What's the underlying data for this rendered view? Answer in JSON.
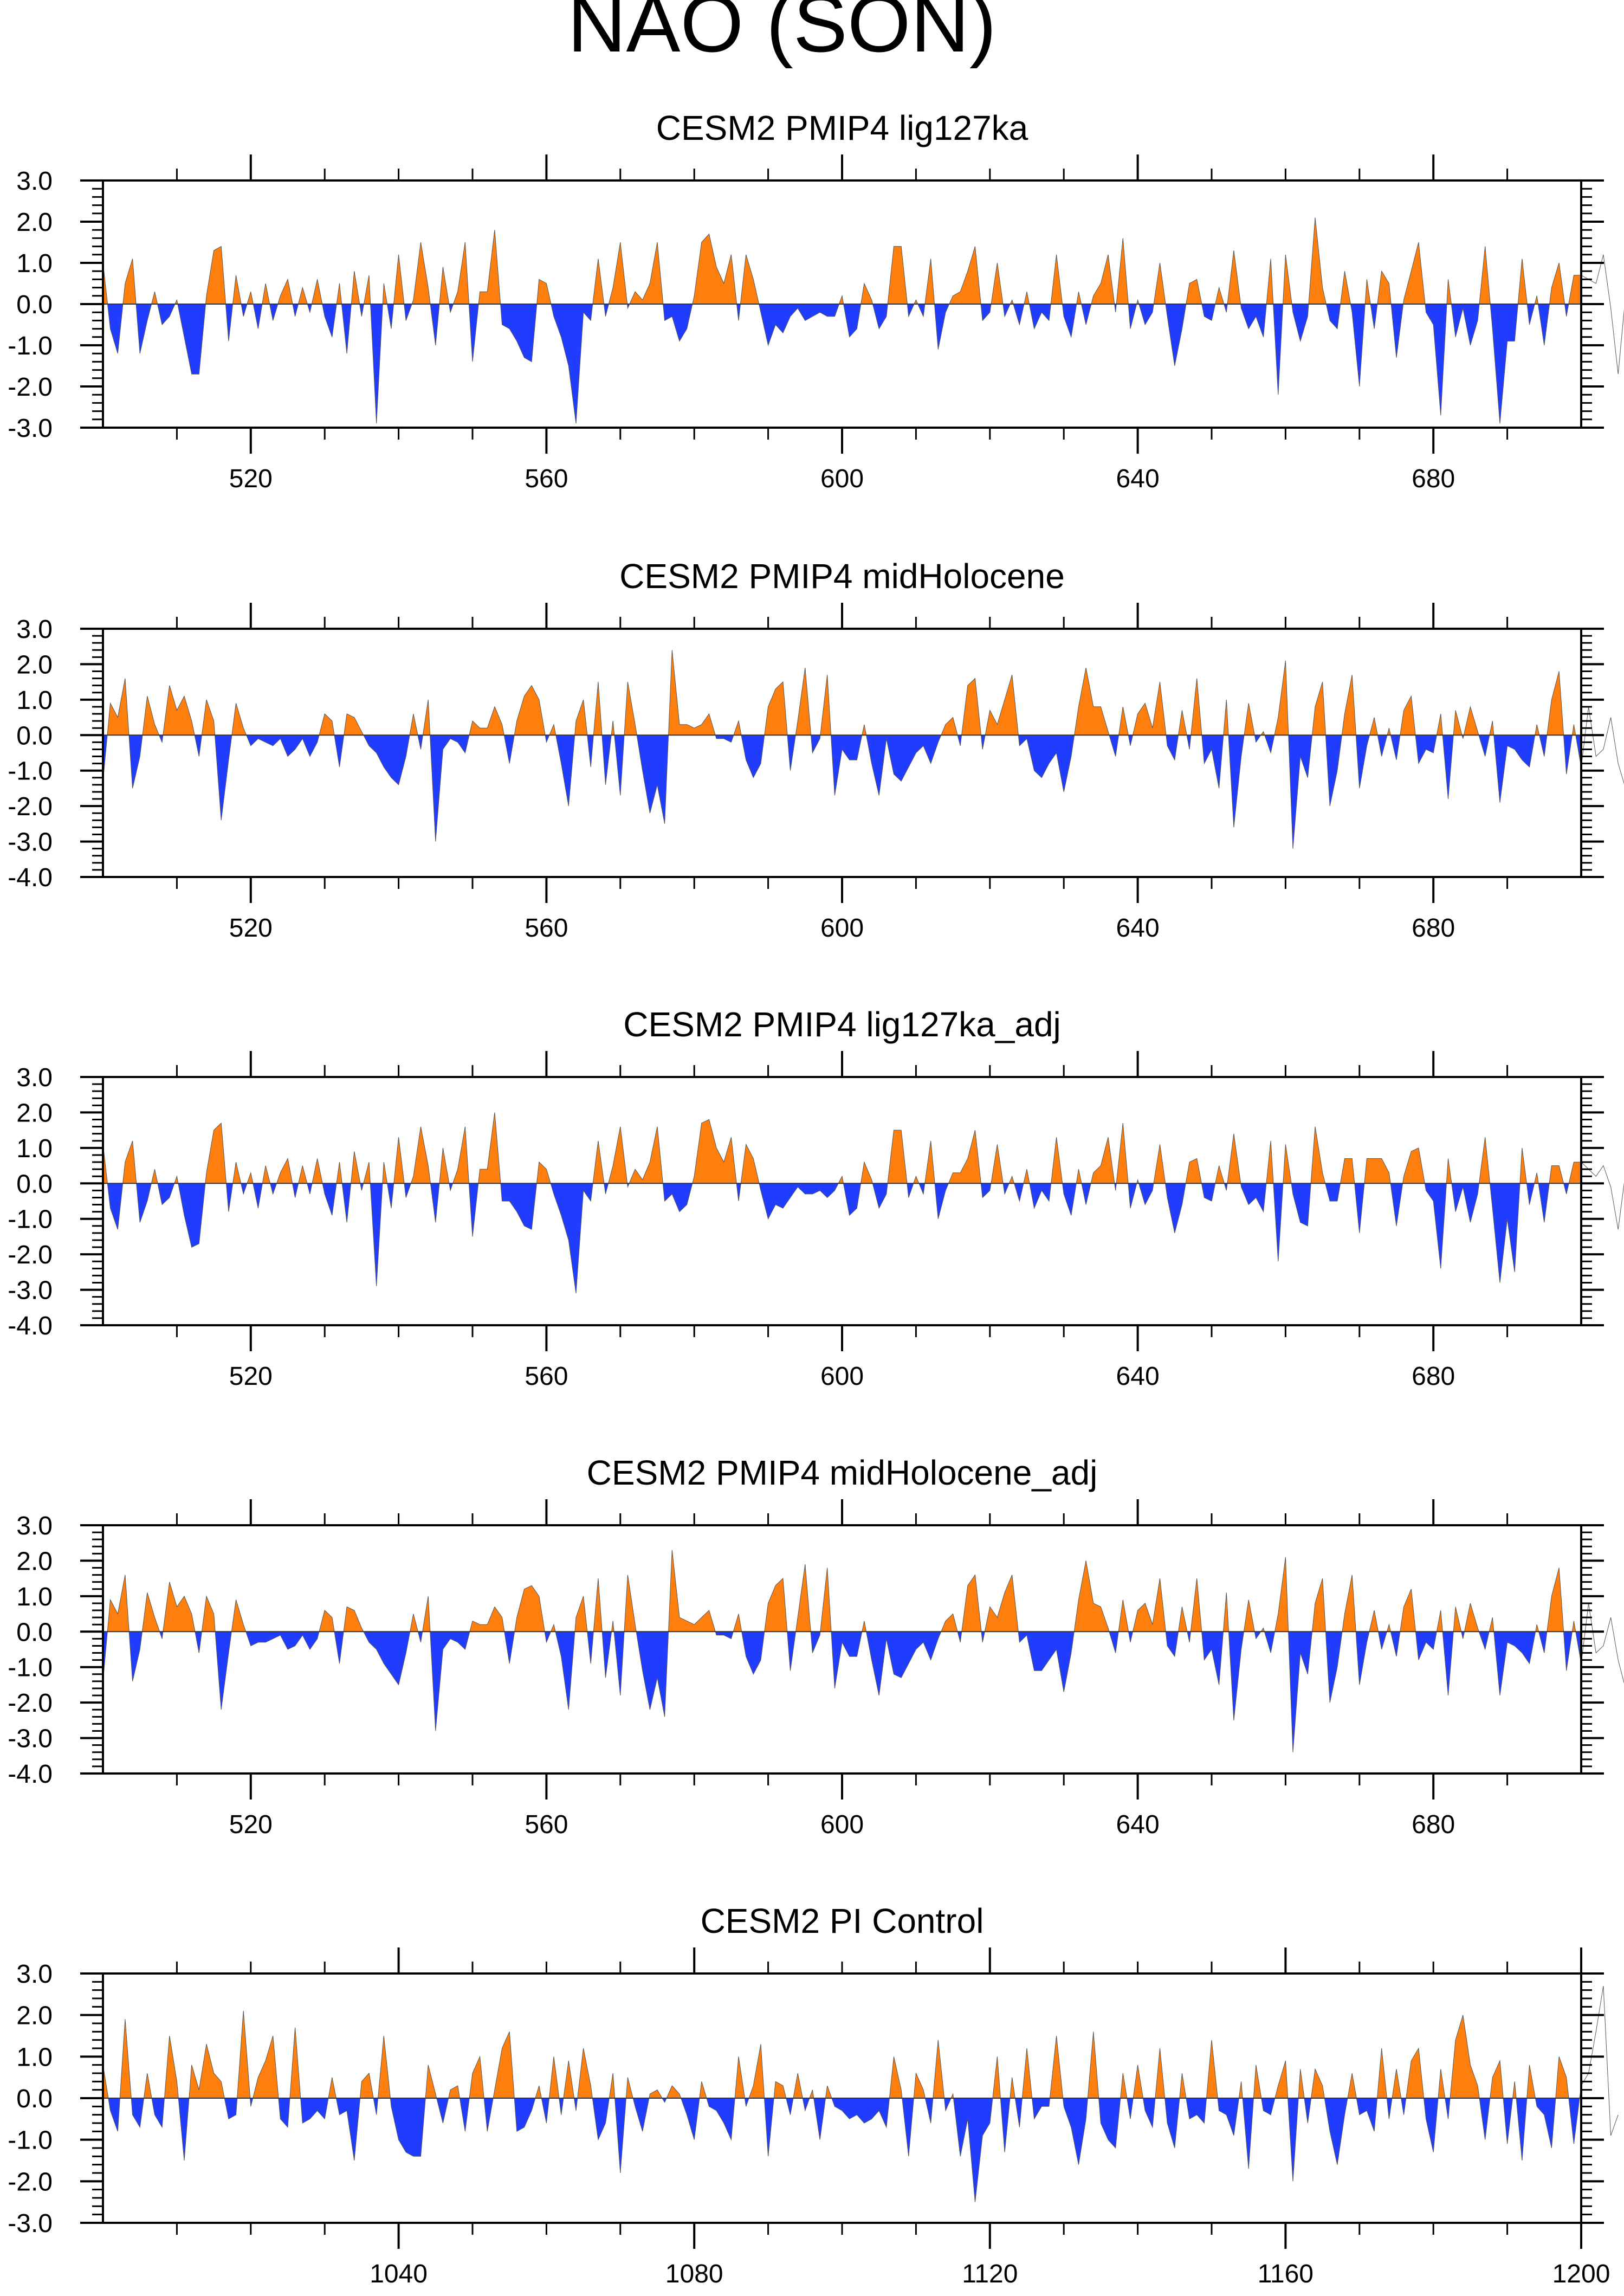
{
  "figure": {
    "title": "NAO (SON)"
  },
  "colors": {
    "positive": "#ff7f0e",
    "negative": "#1f3cff",
    "axis": "#000000"
  },
  "chart_data": [
    {
      "type": "area",
      "title": "CESM2 PMIP4 lig127ka",
      "xlim": [
        500,
        700
      ],
      "ylim": [
        -3.0,
        3.0
      ],
      "yticks": [
        -3.0,
        -2.0,
        -1.0,
        0.0,
        1.0,
        2.0,
        3.0
      ],
      "ytick_labels": [
        "-3.0",
        "-2.0",
        "-1.0",
        "0.0",
        "1.0",
        "2.0",
        "3.0"
      ],
      "xticks": [
        520,
        560,
        600,
        640,
        680
      ],
      "xtick_labels": [
        "520",
        "560",
        "600",
        "640",
        "680"
      ],
      "x_start": 500,
      "values": [
        1.0,
        -0.6,
        -1.2,
        0.5,
        1.1,
        -1.2,
        -0.4,
        0.3,
        -0.5,
        -0.3,
        0.1,
        -0.8,
        -1.7,
        -1.7,
        0.2,
        1.3,
        1.4,
        -0.9,
        0.7,
        -0.3,
        0.3,
        -0.6,
        0.5,
        -0.4,
        0.2,
        0.6,
        -0.3,
        0.4,
        -0.2,
        0.6,
        -0.3,
        -0.8,
        0.5,
        -1.2,
        0.8,
        -0.3,
        0.7,
        -2.9,
        0.5,
        -0.6,
        1.2,
        -0.4,
        0.1,
        1.5,
        0.4,
        -1.0,
        0.9,
        -0.2,
        0.3,
        1.5,
        -1.4,
        0.3,
        0.3,
        1.8,
        -0.5,
        -0.6,
        -0.9,
        -1.3,
        -1.4,
        0.6,
        0.5,
        -0.3,
        -0.8,
        -1.5,
        -2.9,
        -0.2,
        -0.4,
        1.1,
        -0.3,
        0.4,
        1.5,
        -0.1,
        0.3,
        0.1,
        0.5,
        1.5,
        -0.4,
        -0.3,
        -0.9,
        -0.6,
        0.2,
        1.5,
        1.7,
        0.9,
        0.5,
        1.2,
        -0.4,
        1.2,
        0.6,
        -0.2,
        -1.0,
        -0.5,
        -0.7,
        -0.3,
        -0.1,
        -0.4,
        -0.3,
        -0.2,
        -0.3,
        -0.3,
        0.2,
        -0.8,
        -0.6,
        0.5,
        0.1,
        -0.6,
        -0.3,
        1.4,
        1.4,
        -0.3,
        0.1,
        -0.3,
        1.1,
        -1.1,
        -0.2,
        0.2,
        0.3,
        0.8,
        1.4,
        -0.4,
        -0.2,
        1.0,
        -0.3,
        0.1,
        -0.5,
        0.3,
        -0.6,
        -0.2,
        -0.4,
        1.2,
        -0.3,
        -0.8,
        0.3,
        -0.5,
        0.2,
        0.5,
        1.2,
        -0.2,
        1.6,
        -0.6,
        0.1,
        -0.5,
        -0.2,
        1.0,
        -0.3,
        -1.5,
        -0.6,
        0.5,
        0.6,
        -0.3,
        -0.4,
        0.4,
        -0.2,
        1.3,
        -0.1,
        -0.6,
        -0.3,
        -0.8,
        1.1,
        -2.2,
        1.2,
        -0.2,
        -0.9,
        -0.3,
        2.1,
        0.4,
        -0.4,
        -0.6,
        0.8,
        -0.2,
        -2.0,
        0.6,
        -0.6,
        0.8,
        0.5,
        -1.3,
        0.1,
        0.8,
        1.5,
        -0.2,
        -0.5,
        -2.7,
        0.6,
        -0.8,
        -0.1,
        -1.0,
        -0.4,
        1.4,
        -0.6,
        -2.9,
        -0.9,
        -0.9,
        1.1,
        -0.5,
        0.2,
        -1.0,
        0.4,
        1.0,
        -0.3,
        0.7,
        0.7,
        0.6,
        0.5,
        1.2,
        -0.1,
        -1.7,
        0.2,
        -0.4,
        -1.8,
        -2.0,
        -1.8
      ]
    },
    {
      "type": "area",
      "title": "CESM2 PMIP4 midHolocene",
      "xlim": [
        500,
        700
      ],
      "ylim": [
        -4.0,
        3.0
      ],
      "yticks": [
        -4.0,
        -3.0,
        -2.0,
        -1.0,
        0.0,
        1.0,
        2.0,
        3.0
      ],
      "ytick_labels": [
        "-4.0",
        "-3.0",
        "-2.0",
        "-1.0",
        "0.0",
        "1.0",
        "2.0",
        "3.0"
      ],
      "xticks": [
        520,
        560,
        600,
        640,
        680
      ],
      "xtick_labels": [
        "520",
        "560",
        "600",
        "640",
        "680"
      ],
      "x_start": 500,
      "values": [
        -1.3,
        0.9,
        0.5,
        1.6,
        -1.5,
        -0.6,
        1.1,
        0.3,
        -0.2,
        1.4,
        0.7,
        1.1,
        0.4,
        -0.6,
        1.0,
        0.4,
        -2.4,
        -0.7,
        0.9,
        0.2,
        -0.3,
        -0.1,
        -0.2,
        -0.3,
        -0.1,
        -0.6,
        -0.4,
        -0.1,
        -0.6,
        -0.2,
        0.6,
        0.4,
        -0.9,
        0.6,
        0.5,
        0.1,
        -0.3,
        -0.5,
        -0.9,
        -1.2,
        -1.4,
        -0.6,
        0.6,
        -0.4,
        1.0,
        -3.0,
        -0.4,
        -0.1,
        -0.2,
        -0.5,
        0.4,
        0.2,
        0.2,
        0.8,
        0.3,
        -0.8,
        0.4,
        1.1,
        1.4,
        1.0,
        -0.2,
        0.3,
        -0.8,
        -2.0,
        0.4,
        1.0,
        -0.9,
        1.5,
        -1.4,
        0.4,
        -1.7,
        1.5,
        0.3,
        -1.0,
        -2.2,
        -1.4,
        -2.5,
        2.4,
        0.3,
        0.3,
        0.2,
        0.3,
        0.6,
        -0.1,
        -0.1,
        -0.2,
        0.4,
        -0.7,
        -1.2,
        -0.8,
        0.8,
        1.3,
        1.5,
        -1.0,
        0.4,
        1.9,
        -0.5,
        -0.1,
        1.7,
        -1.7,
        -0.4,
        -0.7,
        -0.7,
        0.3,
        -0.8,
        -1.7,
        -0.1,
        -1.1,
        -1.3,
        -0.9,
        -0.5,
        -0.3,
        -0.8,
        -0.2,
        0.3,
        0.5,
        -0.3,
        1.4,
        1.6,
        -0.4,
        0.7,
        0.3,
        1.0,
        1.7,
        -0.3,
        -0.1,
        -1.0,
        -1.2,
        -0.8,
        -0.5,
        -1.6,
        -0.6,
        0.8,
        1.9,
        0.8,
        0.8,
        0.1,
        -0.6,
        0.8,
        -0.3,
        0.6,
        0.9,
        0.2,
        1.5,
        -0.3,
        -0.7,
        0.7,
        -0.4,
        1.6,
        -0.8,
        -0.4,
        -1.5,
        1.0,
        -2.6,
        -0.6,
        0.9,
        -0.2,
        0.1,
        -0.5,
        0.5,
        2.1,
        -3.2,
        -0.6,
        -1.2,
        0.8,
        1.5,
        -2.0,
        -1.0,
        0.6,
        1.7,
        -1.5,
        -0.3,
        0.5,
        -0.6,
        0.2,
        -0.7,
        0.7,
        1.1,
        -0.8,
        -0.4,
        -0.5,
        0.6,
        -1.8,
        0.7,
        -0.1,
        0.8,
        0.1,
        -0.6,
        0.4,
        -1.9,
        -0.3,
        -0.4,
        -0.7,
        -0.9,
        0.3,
        -0.6,
        1.0,
        1.8,
        -1.1,
        0.3,
        -0.9,
        0.8,
        -0.6,
        -0.4,
        0.5,
        -0.8,
        -1.5,
        -0.6,
        -0.6,
        -1.0
      ]
    },
    {
      "type": "area",
      "title": "CESM2 PMIP4 lig127ka_adj",
      "xlim": [
        500,
        700
      ],
      "ylim": [
        -4.0,
        3.0
      ],
      "yticks": [
        -4.0,
        -3.0,
        -2.0,
        -1.0,
        0.0,
        1.0,
        2.0,
        3.0
      ],
      "ytick_labels": [
        "-4.0",
        "-3.0",
        "-2.0",
        "-1.0",
        "0.0",
        "1.0",
        "2.0",
        "3.0"
      ],
      "xticks": [
        520,
        560,
        600,
        640,
        680
      ],
      "xtick_labels": [
        "520",
        "560",
        "600",
        "640",
        "680"
      ],
      "x_start": 500,
      "values": [
        1.1,
        -0.7,
        -1.3,
        0.6,
        1.2,
        -1.1,
        -0.5,
        0.4,
        -0.6,
        -0.4,
        0.2,
        -0.9,
        -1.8,
        -1.7,
        0.3,
        1.5,
        1.7,
        -0.8,
        0.6,
        -0.3,
        0.3,
        -0.7,
        0.5,
        -0.3,
        0.3,
        0.7,
        -0.4,
        0.5,
        -0.3,
        0.7,
        -0.3,
        -0.9,
        0.6,
        -1.1,
        0.9,
        -0.2,
        0.6,
        -2.9,
        0.6,
        -0.7,
        1.3,
        -0.4,
        0.2,
        1.6,
        0.5,
        -1.1,
        1.0,
        -0.2,
        0.4,
        1.6,
        -1.5,
        0.4,
        0.4,
        2.0,
        -0.5,
        -0.5,
        -0.8,
        -1.2,
        -1.3,
        0.6,
        0.4,
        -0.3,
        -0.9,
        -1.6,
        -3.1,
        -0.2,
        -0.5,
        1.2,
        -0.3,
        0.5,
        1.6,
        -0.1,
        0.4,
        0.1,
        0.6,
        1.6,
        -0.5,
        -0.3,
        -0.8,
        -0.6,
        0.2,
        1.7,
        1.8,
        1.0,
        0.6,
        1.3,
        -0.5,
        1.1,
        0.7,
        -0.2,
        -1.0,
        -0.6,
        -0.7,
        -0.4,
        -0.1,
        -0.3,
        -0.3,
        -0.2,
        -0.4,
        -0.2,
        0.2,
        -0.9,
        -0.7,
        0.6,
        0.1,
        -0.7,
        -0.3,
        1.5,
        1.5,
        -0.4,
        0.2,
        -0.3,
        1.2,
        -1.0,
        -0.2,
        0.3,
        0.3,
        0.7,
        1.5,
        -0.4,
        -0.2,
        1.1,
        -0.3,
        0.2,
        -0.5,
        0.4,
        -0.7,
        -0.2,
        -0.5,
        1.3,
        -0.3,
        -0.9,
        0.4,
        -0.6,
        0.3,
        0.5,
        1.3,
        -0.2,
        1.7,
        -0.7,
        0.1,
        -0.6,
        -0.2,
        1.1,
        -0.4,
        -1.4,
        -0.6,
        0.6,
        0.7,
        -0.4,
        -0.5,
        0.5,
        -0.2,
        1.4,
        -0.1,
        -0.6,
        -0.4,
        -0.8,
        1.2,
        -2.2,
        1.1,
        -0.3,
        -1.1,
        -1.2,
        1.6,
        0.3,
        -0.5,
        -0.5,
        0.7,
        0.7,
        -1.4,
        0.7,
        0.7,
        0.7,
        0.3,
        -1.2,
        0.2,
        0.9,
        1.0,
        -0.2,
        -0.5,
        -2.4,
        0.7,
        -0.8,
        -0.1,
        -1.1,
        -0.3,
        1.3,
        -0.7,
        -2.8,
        -1.0,
        -2.5,
        1.0,
        -0.6,
        0.3,
        -1.1,
        0.5,
        0.5,
        -0.3,
        0.6,
        0.6,
        0.4,
        0.2,
        0.5,
        -0.1,
        -1.3,
        0.3,
        -0.4,
        -1.8,
        -1.8,
        -1.7
      ]
    },
    {
      "type": "area",
      "title": "CESM2 PMIP4 midHolocene_adj",
      "xlim": [
        500,
        700
      ],
      "ylim": [
        -4.0,
        3.0
      ],
      "yticks": [
        -4.0,
        -3.0,
        -2.0,
        -1.0,
        0.0,
        1.0,
        2.0,
        3.0
      ],
      "ytick_labels": [
        "-4.0",
        "-3.0",
        "-2.0",
        "-1.0",
        "0.0",
        "1.0",
        "2.0",
        "3.0"
      ],
      "xticks": [
        520,
        560,
        600,
        640,
        680
      ],
      "xtick_labels": [
        "520",
        "560",
        "600",
        "640",
        "680"
      ],
      "x_start": 500,
      "values": [
        -1.4,
        0.9,
        0.5,
        1.6,
        -1.4,
        -0.5,
        1.1,
        0.4,
        -0.2,
        1.4,
        0.7,
        1.0,
        0.5,
        -0.6,
        1.0,
        0.5,
        -2.2,
        -0.6,
        0.9,
        0.2,
        -0.4,
        -0.3,
        -0.3,
        -0.2,
        -0.1,
        -0.5,
        -0.4,
        -0.1,
        -0.5,
        -0.2,
        0.6,
        0.4,
        -0.9,
        0.7,
        0.6,
        0.1,
        -0.3,
        -0.5,
        -0.9,
        -1.2,
        -1.5,
        -0.6,
        0.5,
        -0.3,
        1.0,
        -2.8,
        -0.5,
        -0.2,
        -0.3,
        -0.5,
        0.3,
        0.2,
        0.2,
        0.7,
        0.4,
        -0.9,
        0.4,
        1.2,
        1.3,
        1.0,
        -0.3,
        0.2,
        -0.7,
        -2.2,
        0.4,
        1.0,
        -0.9,
        1.5,
        -1.3,
        0.3,
        -1.8,
        1.6,
        0.2,
        -1.1,
        -2.2,
        -1.3,
        -2.4,
        2.3,
        0.4,
        0.3,
        0.2,
        0.4,
        0.6,
        -0.1,
        -0.1,
        -0.2,
        0.5,
        -0.7,
        -1.2,
        -0.8,
        0.8,
        1.3,
        1.5,
        -1.1,
        0.4,
        1.9,
        -0.6,
        -0.1,
        1.8,
        -1.6,
        -0.3,
        -0.7,
        -0.7,
        0.3,
        -0.8,
        -1.8,
        -0.2,
        -1.2,
        -1.3,
        -0.9,
        -0.5,
        -0.3,
        -0.8,
        -0.2,
        0.3,
        0.5,
        -0.3,
        1.3,
        1.6,
        -0.3,
        0.7,
        0.4,
        1.1,
        1.6,
        -0.3,
        -0.1,
        -1.1,
        -1.1,
        -0.8,
        -0.5,
        -1.7,
        -0.6,
        0.9,
        2.0,
        0.8,
        0.7,
        0.1,
        -0.6,
        0.9,
        -0.3,
        0.6,
        0.8,
        0.2,
        1.5,
        -0.4,
        -0.7,
        0.7,
        -0.3,
        1.5,
        -0.8,
        -0.5,
        -1.5,
        1.1,
        -2.5,
        -0.5,
        0.9,
        -0.2,
        0.1,
        -0.6,
        0.5,
        2.1,
        -3.4,
        -0.6,
        -1.2,
        0.8,
        1.5,
        -2.0,
        -1.0,
        0.5,
        1.6,
        -1.5,
        -0.3,
        0.6,
        -0.5,
        0.2,
        -0.7,
        0.7,
        1.2,
        -0.8,
        -0.3,
        -0.5,
        0.6,
        -1.8,
        0.7,
        -0.2,
        0.8,
        0.1,
        -0.5,
        0.4,
        -1.8,
        -0.3,
        -0.4,
        -0.6,
        -0.9,
        0.2,
        -0.6,
        1.0,
        1.8,
        -1.1,
        0.3,
        -0.9,
        0.8,
        -0.6,
        -0.4,
        0.4,
        -0.8,
        -1.6,
        -0.6,
        -0.6,
        -1.1
      ]
    },
    {
      "type": "area",
      "title": "CESM2 PI Control",
      "xlim": [
        1000,
        1200
      ],
      "ylim": [
        -3.0,
        3.0
      ],
      "yticks": [
        -3.0,
        -2.0,
        -1.0,
        0.0,
        1.0,
        2.0,
        3.0
      ],
      "ytick_labels": [
        "-3.0",
        "-2.0",
        "-1.0",
        "0.0",
        "1.0",
        "2.0",
        "3.0"
      ],
      "xticks": [
        1040,
        1080,
        1120,
        1160,
        1200
      ],
      "xtick_labels": [
        "1040",
        "1080",
        "1120",
        "1160",
        "1200"
      ],
      "x_start": 1000,
      "values": [
        0.8,
        -0.3,
        -0.8,
        1.9,
        -0.4,
        -0.7,
        0.6,
        -0.4,
        -0.7,
        1.5,
        0.4,
        -1.5,
        0.8,
        0.2,
        1.3,
        0.6,
        0.4,
        -0.5,
        -0.4,
        2.1,
        -0.2,
        0.5,
        0.9,
        1.5,
        -0.5,
        -0.7,
        1.7,
        -0.6,
        -0.5,
        -0.3,
        -0.5,
        0.5,
        -0.4,
        -0.3,
        -1.5,
        0.4,
        0.6,
        -0.4,
        1.5,
        -0.2,
        -1.0,
        -1.3,
        -1.4,
        -1.4,
        0.8,
        0.1,
        -0.6,
        0.2,
        0.3,
        -0.8,
        0.6,
        1.0,
        -0.8,
        0.2,
        1.2,
        1.6,
        -0.8,
        -0.7,
        -0.3,
        0.3,
        -0.6,
        1.0,
        -0.4,
        0.9,
        -0.3,
        1.2,
        0.3,
        -1.0,
        -0.6,
        0.6,
        -1.8,
        0.5,
        -0.2,
        -0.8,
        0.1,
        0.2,
        -0.1,
        0.3,
        0.1,
        -0.4,
        -1.0,
        0.4,
        -0.2,
        -0.3,
        -0.6,
        -1.0,
        1.0,
        -0.2,
        0.3,
        1.3,
        -1.4,
        0.4,
        0.3,
        -0.4,
        0.6,
        -0.3,
        0.2,
        -1.0,
        0.3,
        -0.2,
        -0.3,
        -0.5,
        -0.4,
        -0.6,
        -0.5,
        -0.3,
        -0.7,
        1.0,
        0.2,
        -1.4,
        0.6,
        0.2,
        -0.6,
        1.4,
        -0.3,
        0.1,
        -1.4,
        -0.5,
        -2.5,
        -0.9,
        -0.6,
        1.0,
        -1.3,
        0.5,
        -0.7,
        1.2,
        -0.5,
        -0.2,
        -0.2,
        1.5,
        -0.2,
        -0.7,
        -1.6,
        -0.5,
        1.6,
        -0.6,
        -1.0,
        -1.2,
        0.6,
        -0.5,
        0.8,
        -0.3,
        -0.7,
        1.2,
        -0.6,
        -1.2,
        0.6,
        -0.5,
        -0.4,
        -0.6,
        1.4,
        -0.3,
        -0.4,
        -0.9,
        0.4,
        -1.7,
        0.8,
        -0.3,
        -0.4,
        0.3,
        0.9,
        -2.0,
        0.7,
        -0.6,
        0.7,
        0.3,
        -0.8,
        -1.6,
        -0.4,
        0.6,
        -0.4,
        -0.3,
        -0.8,
        1.2,
        -0.5,
        0.7,
        -0.4,
        0.9,
        1.2,
        -0.5,
        -1.3,
        0.7,
        -0.5,
        1.4,
        2.0,
        0.8,
        0.3,
        -1.0,
        0.5,
        0.9,
        -1.1,
        0.4,
        -1.5,
        0.8,
        -0.2,
        -0.4,
        -1.2,
        1.0,
        0.5,
        -1.1,
        0.3,
        0.6,
        1.6,
        2.7,
        -0.9,
        -0.4
      ]
    }
  ]
}
